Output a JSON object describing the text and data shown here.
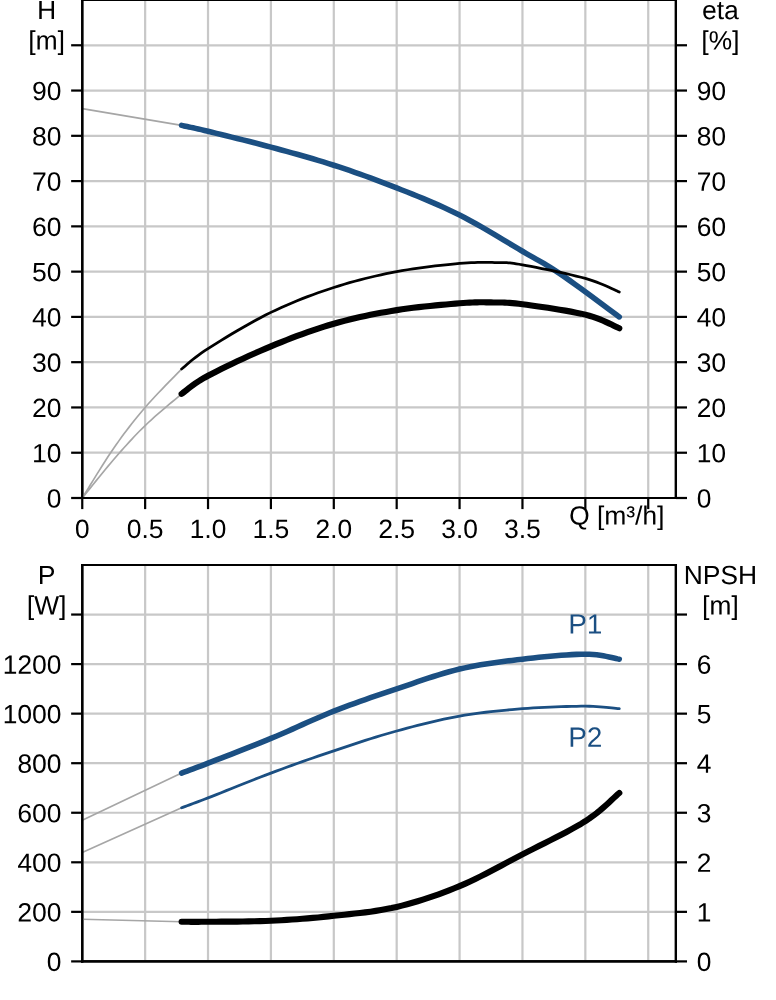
{
  "chart_data": [
    {
      "type": "line",
      "xlabel": "Q [m³/h]",
      "ylabel": "H\n[m]",
      "y2label": "eta\n[%]",
      "grid": true,
      "legend": false,
      "marker": "none",
      "line_style": "solid",
      "xlim": [
        0,
        4.72
      ],
      "xticks": [
        0,
        0.5,
        {
          "value": 1.0,
          "label": "1.0"
        },
        1.5,
        {
          "value": 2.0,
          "label": "2.0"
        },
        2.5,
        {
          "value": 3.0,
          "label": "3.0"
        },
        3.5,
        {
          "value": 4.0,
          "label": null
        },
        {
          "value": 4.5,
          "label": null
        }
      ],
      "ylim": [
        0,
        110
      ],
      "yticks": [
        0,
        10,
        20,
        30,
        40,
        50,
        60,
        70,
        80,
        90,
        {
          "value": 100,
          "label": null
        }
      ],
      "y2lim": [
        0,
        110
      ],
      "y2ticks": [
        0,
        10,
        20,
        30,
        40,
        50,
        60,
        70,
        80,
        90,
        {
          "value": 100,
          "label": null
        }
      ],
      "series": [
        {
          "color": "#a6a6a6",
          "x": [
            0,
            0.79
          ],
          "values": [
            86,
            82.3
          ]
        },
        {
          "color": "#1b4f82",
          "x": [
            0.79,
            1.0,
            1.5,
            2.0,
            2.5,
            3.0,
            3.5,
            3.8,
            4.27
          ],
          "values": [
            82.3,
            81,
            77.5,
            73.5,
            68.5,
            62.5,
            54.5,
            49.5,
            40
          ]
        },
        {
          "color": "#a6a6a6",
          "axis": "y2",
          "x": [
            0,
            0.25,
            0.5,
            0.79
          ],
          "values": [
            0,
            11,
            20,
            28.5
          ]
        },
        {
          "color": "#000000",
          "axis": "y2",
          "x": [
            0.79,
            1.0,
            1.5,
            2.0,
            2.5,
            3.0,
            3.3,
            3.5,
            4.0,
            4.27
          ],
          "values": [
            28.5,
            33,
            41,
            46.5,
            50,
            51.8,
            52,
            51.5,
            48.5,
            45.5
          ]
        },
        {
          "color": "#a6a6a6",
          "axis": "y2",
          "x": [
            0,
            0.25,
            0.5,
            0.79
          ],
          "values": [
            0,
            8.5,
            16,
            23
          ]
        },
        {
          "color": "#000000",
          "axis": "y2",
          "x": [
            0.79,
            1.0,
            1.5,
            2.0,
            2.5,
            3.0,
            3.25,
            3.5,
            4.0,
            4.27
          ],
          "values": [
            23,
            27,
            33.5,
            38.5,
            41.5,
            43,
            43.2,
            42.8,
            40.5,
            37.5
          ]
        }
      ]
    },
    {
      "type": "line",
      "ylabel": "P\n[W]",
      "y2label": "NPSH\n[m]",
      "grid": true,
      "legend": false,
      "marker": "none",
      "line_style": "solid",
      "tick_labels": "y",
      "xlim": [
        0,
        4.72
      ],
      "xticks": [
        0,
        0.5,
        1,
        1.5,
        2,
        2.5,
        3,
        3.5,
        4,
        4.5
      ],
      "ylim": [
        0,
        1600
      ],
      "yticks": [
        0,
        200,
        400,
        600,
        800,
        1000,
        1200,
        {
          "value": 1400,
          "label": null
        }
      ],
      "y2lim": [
        0,
        8
      ],
      "y2ticks": [
        0,
        1,
        2,
        3,
        4,
        5,
        6,
        {
          "value": 7,
          "label": null
        }
      ],
      "series": [
        {
          "color": "#a6a6a6",
          "x": [
            0,
            0.79
          ],
          "values": [
            570,
            760
          ]
        },
        {
          "name": "P1",
          "color": "#1b4f82",
          "x": [
            0.79,
            1.0,
            1.5,
            2.0,
            2.5,
            3.0,
            3.5,
            4.0,
            4.27
          ],
          "values": [
            760,
            800,
            900,
            1010,
            1100,
            1180,
            1220,
            1240,
            1220
          ]
        },
        {
          "color": "#a6a6a6",
          "x": [
            0,
            0.79
          ],
          "values": [
            440,
            620
          ]
        },
        {
          "name": "P2",
          "color": "#1b4f82",
          "x": [
            0.79,
            1.0,
            1.5,
            2.0,
            2.5,
            3.0,
            3.5,
            4.0,
            4.27
          ],
          "values": [
            620,
            660,
            760,
            850,
            930,
            990,
            1020,
            1030,
            1020
          ]
        },
        {
          "color": "#a6a6a6",
          "axis": "y2",
          "x": [
            0,
            0.79
          ],
          "values": [
            0.85,
            0.8
          ]
        },
        {
          "color": "#000000",
          "axis": "y2",
          "x": [
            0.79,
            1.0,
            1.5,
            2.0,
            2.5,
            3.0,
            3.5,
            4.0,
            4.27
          ],
          "values": [
            0.8,
            0.8,
            0.82,
            0.92,
            1.1,
            1.52,
            2.16,
            2.83,
            3.4
          ]
        }
      ]
    }
  ]
}
